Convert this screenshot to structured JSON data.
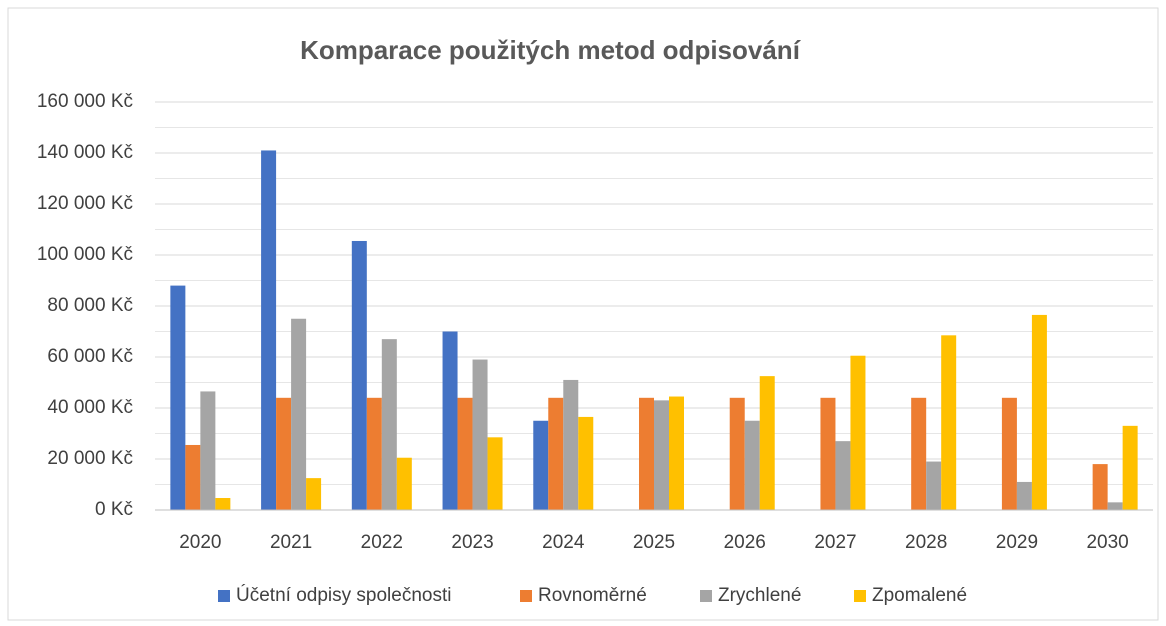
{
  "chart_data": {
    "type": "bar",
    "title": "Komparace použitých metod odpisování",
    "categories": [
      "2020",
      "2021",
      "2022",
      "2023",
      "2024",
      "2025",
      "2026",
      "2027",
      "2028",
      "2029",
      "2030"
    ],
    "series": [
      {
        "name": "Účetní odpisy společnosti",
        "color": "#4472c4",
        "values": [
          88000,
          141000,
          105500,
          70000,
          35000,
          null,
          null,
          null,
          null,
          null,
          null
        ]
      },
      {
        "name": "Rovnoměrné",
        "color": "#ed7d31",
        "values": [
          25500,
          44000,
          44000,
          44000,
          44000,
          44000,
          44000,
          44000,
          44000,
          44000,
          18000
        ]
      },
      {
        "name": "Zrychlené",
        "color": "#a5a5a5",
        "values": [
          46500,
          75000,
          67000,
          59000,
          51000,
          43000,
          35000,
          27000,
          19000,
          11000,
          3000
        ]
      },
      {
        "name": "Zpomalené",
        "color": "#ffc000",
        "values": [
          4700,
          12500,
          20500,
          28500,
          36500,
          44500,
          52500,
          60500,
          68500,
          76500,
          33000
        ]
      }
    ],
    "ylim": [
      0,
      160000
    ],
    "yticks": [
      {
        "value": 0,
        "label": "0 Kč"
      },
      {
        "value": 20000,
        "label": "20 000 Kč"
      },
      {
        "value": 40000,
        "label": "40 000 Kč"
      },
      {
        "value": 60000,
        "label": "60 000 Kč"
      },
      {
        "value": 80000,
        "label": "80 000 Kč"
      },
      {
        "value": 100000,
        "label": "100 000 Kč"
      },
      {
        "value": 120000,
        "label": "120 000 Kč"
      },
      {
        "value": 140000,
        "label": "140 000 Kč"
      },
      {
        "value": 160000,
        "label": "160 000 Kč"
      }
    ],
    "minor_yticks": [
      10000,
      30000,
      50000,
      70000,
      90000,
      110000,
      130000,
      150000
    ],
    "grid": true,
    "legend": "bottom"
  }
}
